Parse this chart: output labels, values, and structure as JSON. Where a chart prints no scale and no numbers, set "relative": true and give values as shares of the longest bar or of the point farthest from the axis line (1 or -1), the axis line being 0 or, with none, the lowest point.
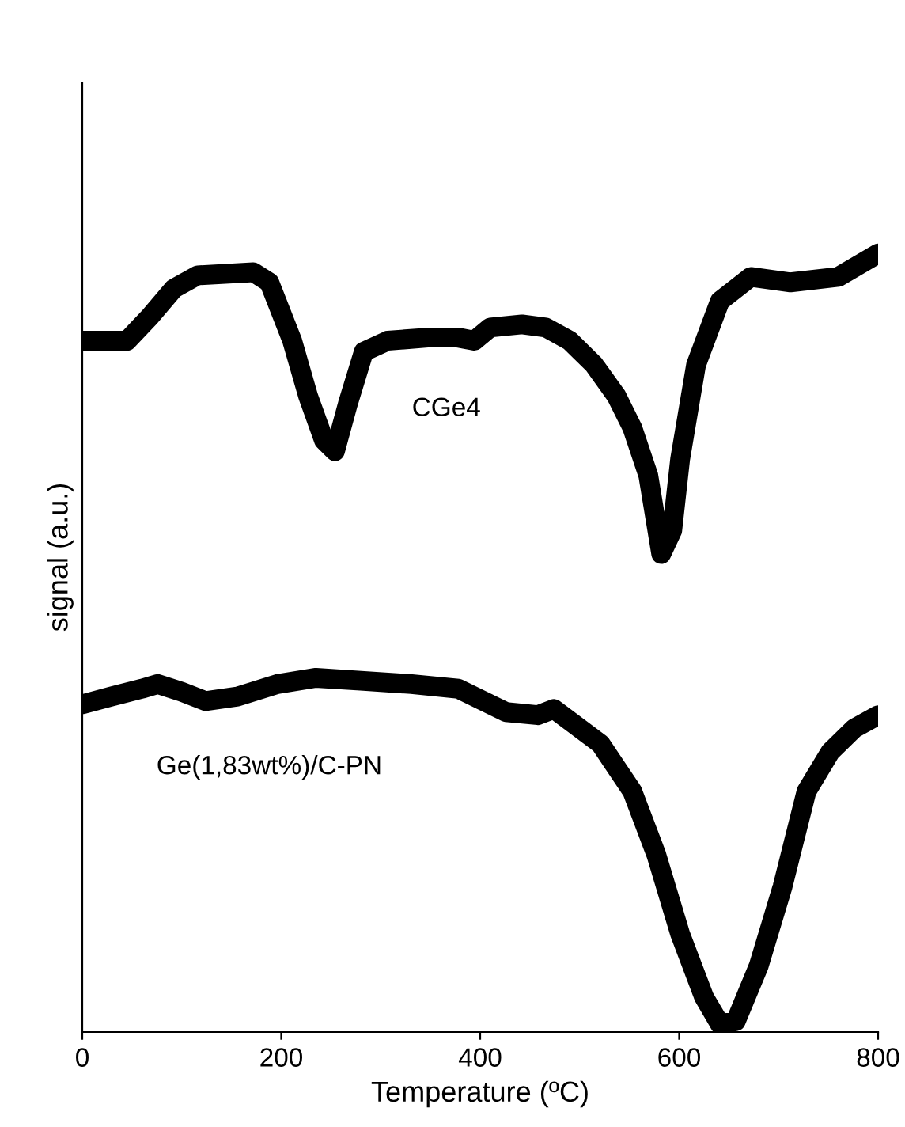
{
  "chart_data": {
    "type": "line",
    "relative": true,
    "xlabel": "Temperature (ºC)",
    "ylabel": "signal (a.u.)",
    "xlim": [
      0,
      800
    ],
    "xticks": [
      0,
      200,
      400,
      600,
      800
    ],
    "grid": false,
    "legend": false,
    "line_style": "solid",
    "series": [
      {
        "name": "CGe4",
        "color": "#000000",
        "x": [
          0,
          45,
          68,
          92,
          116,
          172,
          188,
          211,
          227,
          243,
          254,
          267,
          283,
          307,
          347,
          378,
          394,
          410,
          442,
          466,
          490,
          514,
          537,
          553,
          569,
          582,
          593,
          601,
          617,
          641,
          672,
          712,
          760,
          800
        ],
        "values": [
          0.888,
          0.888,
          0.919,
          0.955,
          0.972,
          0.976,
          0.963,
          0.888,
          0.817,
          0.76,
          0.746,
          0.807,
          0.874,
          0.888,
          0.892,
          0.892,
          0.888,
          0.905,
          0.909,
          0.905,
          0.888,
          0.858,
          0.817,
          0.776,
          0.715,
          0.614,
          0.644,
          0.736,
          0.857,
          0.939,
          0.97,
          0.963,
          0.97,
          1.0
        ]
      },
      {
        "name": "Ge(1,83wt%)/C-PN",
        "color": "#000000",
        "x": [
          0,
          29,
          60,
          76,
          100,
          124,
          156,
          196,
          235,
          283,
          331,
          378,
          426,
          458,
          474,
          521,
          553,
          577,
          601,
          625,
          641,
          657,
          680,
          704,
          728,
          752,
          776,
          800
        ],
        "values": [
          0.421,
          0.431,
          0.441,
          0.447,
          0.437,
          0.425,
          0.431,
          0.447,
          0.455,
          0.451,
          0.447,
          0.441,
          0.411,
          0.407,
          0.415,
          0.37,
          0.309,
          0.228,
          0.126,
          0.045,
          0.01,
          0.014,
          0.085,
          0.187,
          0.309,
          0.36,
          0.39,
          0.407
        ]
      }
    ]
  }
}
